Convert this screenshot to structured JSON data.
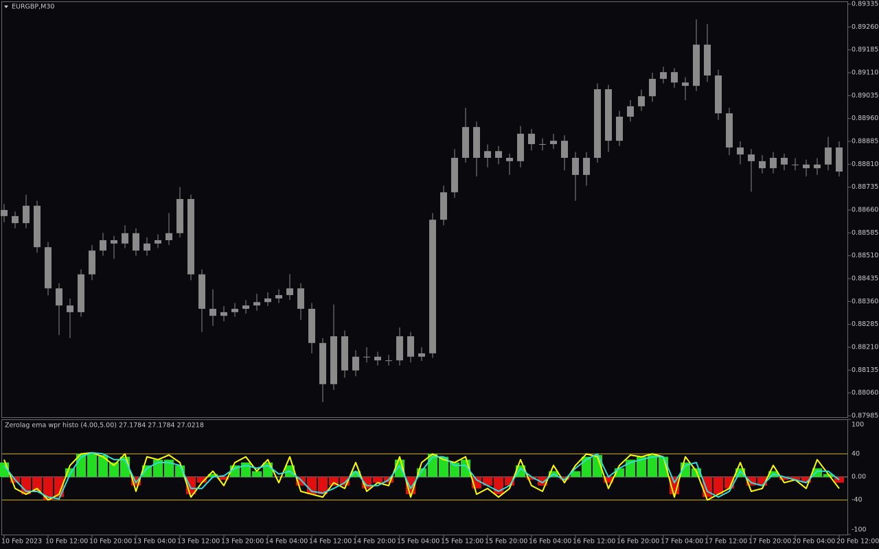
{
  "chart_data": [
    {
      "type": "candlestick",
      "title": "EURGBP,M30",
      "color": "#8a8a8a",
      "categories": [
        "10 Feb 2023",
        null,
        null,
        null,
        "10 Feb 12:00",
        null,
        null,
        null,
        "10 Feb 20:00",
        null,
        null,
        null,
        "13 Feb 04:00",
        null,
        null,
        null,
        "13 Feb 12:00",
        null,
        null,
        null,
        "13 Feb 20:00",
        null,
        null,
        null,
        "14 Feb 04:00",
        null,
        null,
        null,
        "14 Feb 12:00",
        null,
        null,
        null,
        "14 Feb 20:00",
        null,
        null,
        null,
        "15 Feb 04:00",
        null,
        null,
        null,
        "15 Feb 12:00",
        null,
        null,
        null,
        "15 Feb 20:00",
        null,
        null,
        null,
        "16 Feb 04:00",
        null,
        null,
        null,
        "16 Feb 12:00",
        null,
        null,
        null,
        "16 Feb 20:00",
        null,
        null,
        null,
        "17 Feb 04:00",
        null,
        null,
        null,
        "17 Feb 12:00",
        null,
        null,
        null,
        "17 Feb 20:00",
        null,
        null,
        null,
        "20 Feb 04:00",
        null,
        null,
        null,
        "20 Feb 12:00"
      ],
      "open": [
        0.8866,
        0.8864,
        0.88617,
        0.88674,
        0.88538,
        0.88403,
        0.88347,
        0.88325,
        0.88449,
        0.88527,
        0.88561,
        0.8855,
        0.88584,
        0.88527,
        0.8855,
        0.88561,
        0.88584,
        0.88696,
        0.88449,
        0.88336,
        0.88313,
        0.88325,
        0.88336,
        0.88347,
        0.88358,
        0.8837,
        0.88381,
        0.88403,
        0.88336,
        0.88224,
        0.88089,
        0.88246,
        0.88134,
        0.88179,
        0.88179,
        0.88167,
        0.88167,
        0.88246,
        0.88179,
        0.8819,
        0.88628,
        0.88718,
        0.88831,
        0.88932,
        0.88831,
        0.88853,
        0.88831,
        0.8882,
        0.8891,
        0.88876,
        0.88876,
        0.88887,
        0.88831,
        0.88775,
        0.88831,
        0.89056,
        0.88887,
        0.88966,
        0.89,
        0.89033,
        0.8909,
        0.89112,
        0.89078,
        0.89067,
        0.89202,
        0.89101,
        0.88977,
        0.88865,
        0.88842,
        0.8882,
        0.88797,
        0.88831,
        0.88809,
        0.88809,
        0.88797,
        0.88809,
        0.88865
      ],
      "high": [
        0.8868,
        0.88655,
        0.8871,
        0.8869,
        0.88555,
        0.8842,
        0.8837,
        0.88465,
        0.88545,
        0.88585,
        0.88575,
        0.8861,
        0.886,
        0.8857,
        0.8858,
        0.8865,
        0.88735,
        0.8871,
        0.88465,
        0.884,
        0.88345,
        0.88355,
        0.88365,
        0.88385,
        0.8839,
        0.884,
        0.8845,
        0.8842,
        0.88355,
        0.8824,
        0.8835,
        0.88265,
        0.882,
        0.8821,
        0.88195,
        0.88185,
        0.88275,
        0.8826,
        0.8821,
        0.8865,
        0.8874,
        0.8886,
        0.88995,
        0.8895,
        0.88875,
        0.8887,
        0.88845,
        0.88935,
        0.88925,
        0.88895,
        0.8891,
        0.88905,
        0.8885,
        0.8885,
        0.89075,
        0.8907,
        0.88985,
        0.8902,
        0.89055,
        0.8911,
        0.8913,
        0.89125,
        0.89095,
        0.89285,
        0.8927,
        0.8912,
        0.88995,
        0.88885,
        0.8886,
        0.8884,
        0.8885,
        0.88845,
        0.8883,
        0.88825,
        0.8883,
        0.889,
        0.88885
      ],
      "low": [
        0.8862,
        0.886,
        0.886,
        0.8852,
        0.8838,
        0.8825,
        0.8824,
        0.8831,
        0.8843,
        0.8851,
        0.885,
        0.88535,
        0.8851,
        0.8851,
        0.88535,
        0.88545,
        0.8857,
        0.8843,
        0.8826,
        0.8828,
        0.88295,
        0.8831,
        0.8832,
        0.8833,
        0.88345,
        0.88355,
        0.88365,
        0.883,
        0.8819,
        0.8803,
        0.8807,
        0.8811,
        0.88115,
        0.8816,
        0.8815,
        0.8815,
        0.8815,
        0.8816,
        0.88165,
        0.88175,
        0.8861,
        0.887,
        0.88815,
        0.8877,
        0.888,
        0.8881,
        0.88775,
        0.888,
        0.88855,
        0.88855,
        0.8886,
        0.8879,
        0.8869,
        0.8874,
        0.88815,
        0.8885,
        0.8887,
        0.8895,
        0.88985,
        0.89015,
        0.89075,
        0.8906,
        0.8902,
        0.8905,
        0.8908,
        0.88955,
        0.8884,
        0.8881,
        0.8872,
        0.8878,
        0.8878,
        0.8879,
        0.8879,
        0.8877,
        0.88775,
        0.8879,
        0.8877
      ],
      "close": [
        0.8864,
        0.88617,
        0.88674,
        0.88538,
        0.88403,
        0.88347,
        0.88325,
        0.88449,
        0.88527,
        0.88561,
        0.8855,
        0.88584,
        0.88527,
        0.8855,
        0.88561,
        0.88584,
        0.88696,
        0.88449,
        0.88336,
        0.88313,
        0.88325,
        0.88336,
        0.88347,
        0.88358,
        0.8837,
        0.88381,
        0.88403,
        0.88336,
        0.88224,
        0.88089,
        0.88246,
        0.88134,
        0.88179,
        0.88179,
        0.88167,
        0.88167,
        0.88246,
        0.88179,
        0.8819,
        0.88628,
        0.88718,
        0.88831,
        0.88932,
        0.88831,
        0.88853,
        0.88831,
        0.8882,
        0.8891,
        0.88876,
        0.88876,
        0.88887,
        0.88831,
        0.88775,
        0.88831,
        0.89056,
        0.88887,
        0.88966,
        0.89,
        0.89033,
        0.8909,
        0.89112,
        0.89078,
        0.89067,
        0.89202,
        0.89101,
        0.88977,
        0.88865,
        0.88842,
        0.8882,
        0.88797,
        0.88831,
        0.88809,
        0.88809,
        0.88797,
        0.88809,
        0.88865,
        0.88786
      ],
      "ylim": [
        0.87985,
        0.89335
      ],
      "yticks": [
        0.87985,
        {
          "value": 0.8806,
          "label": "0.88060"
        },
        0.88135,
        {
          "value": 0.8821,
          "label": "0.88210"
        },
        0.88285,
        {
          "value": 0.8836,
          "label": "0.88360"
        },
        0.88435,
        {
          "value": 0.8851,
          "label": "0.88510"
        },
        0.88585,
        {
          "value": 0.8866,
          "label": "0.88660"
        },
        0.88735,
        {
          "value": 0.8881,
          "label": "0.88810"
        },
        0.88885,
        {
          "value": 0.8896,
          "label": "0.88960"
        },
        0.89035,
        {
          "value": 0.8911,
          "label": "0.89110"
        },
        0.89185,
        {
          "value": 0.8926,
          "label": "0.89260"
        },
        0.89335
      ]
    },
    {
      "type": "indicator",
      "title": "Zerolag ema wpr histo (4.00,5.00) 27.1784 27.1784 27.0218",
      "ylim": [
        -100,
        100
      ],
      "yticks": [
        100,
        40,
        {
          "value": 0,
          "label": "0.00"
        },
        -40,
        -100
      ],
      "level_color": "#d6b400",
      "zero_color": "#9a9a9a",
      "series": [
        {
          "kind": "histogram",
          "up_color": "#22dd22",
          "down_color": "#e01010",
          "values": [
            25,
            -10,
            -30,
            -25,
            -40,
            -35,
            15,
            40,
            42,
            38,
            25,
            35,
            -15,
            20,
            30,
            30,
            20,
            -30,
            -10,
            5,
            -5,
            20,
            25,
            10,
            25,
            0,
            20,
            -15,
            -30,
            -30,
            -15,
            -15,
            10,
            -20,
            -10,
            -10,
            30,
            -30,
            15,
            40,
            35,
            25,
            30,
            -20,
            -15,
            -30,
            -15,
            20,
            -5,
            -15,
            10,
            -5,
            10,
            35,
            38,
            -10,
            15,
            30,
            35,
            38,
            35,
            -30,
            25,
            15,
            -35,
            -30,
            -20,
            15,
            -15,
            -15,
            10,
            -5,
            -5,
            -10,
            15,
            5,
            -10
          ]
        },
        {
          "kind": "line",
          "color": "#ffff00",
          "values": [
            30,
            -20,
            -30,
            -20,
            -40,
            -30,
            20,
            40,
            42,
            35,
            20,
            40,
            -25,
            35,
            30,
            38,
            25,
            -35,
            -10,
            10,
            -15,
            25,
            35,
            10,
            30,
            -10,
            35,
            -25,
            -30,
            -35,
            -10,
            -20,
            25,
            -25,
            -10,
            -15,
            35,
            -35,
            25,
            40,
            30,
            25,
            35,
            -30,
            -20,
            -35,
            -20,
            30,
            -15,
            -25,
            20,
            -10,
            20,
            40,
            35,
            -20,
            20,
            38,
            35,
            40,
            35,
            -35,
            35,
            10,
            -40,
            -30,
            -20,
            25,
            -25,
            -20,
            20,
            -10,
            -5,
            -20,
            30,
            5,
            -20
          ]
        },
        {
          "kind": "line",
          "color": "#33dddd",
          "values": [
            20,
            -5,
            -25,
            -25,
            -35,
            -38,
            5,
            35,
            42,
            40,
            30,
            30,
            -10,
            15,
            25,
            25,
            20,
            -20,
            -20,
            0,
            2,
            15,
            20,
            15,
            20,
            5,
            10,
            -5,
            -25,
            -28,
            -20,
            -10,
            10,
            -15,
            -15,
            -5,
            20,
            -20,
            10,
            35,
            35,
            20,
            20,
            -5,
            -15,
            -25,
            -15,
            15,
            0,
            -10,
            5,
            -5,
            15,
            30,
            40,
            0,
            15,
            25,
            30,
            35,
            35,
            -10,
            20,
            25,
            -25,
            -35,
            -25,
            10,
            -10,
            -15,
            5,
            0,
            -5,
            -10,
            10,
            10,
            -5
          ]
        }
      ]
    }
  ]
}
